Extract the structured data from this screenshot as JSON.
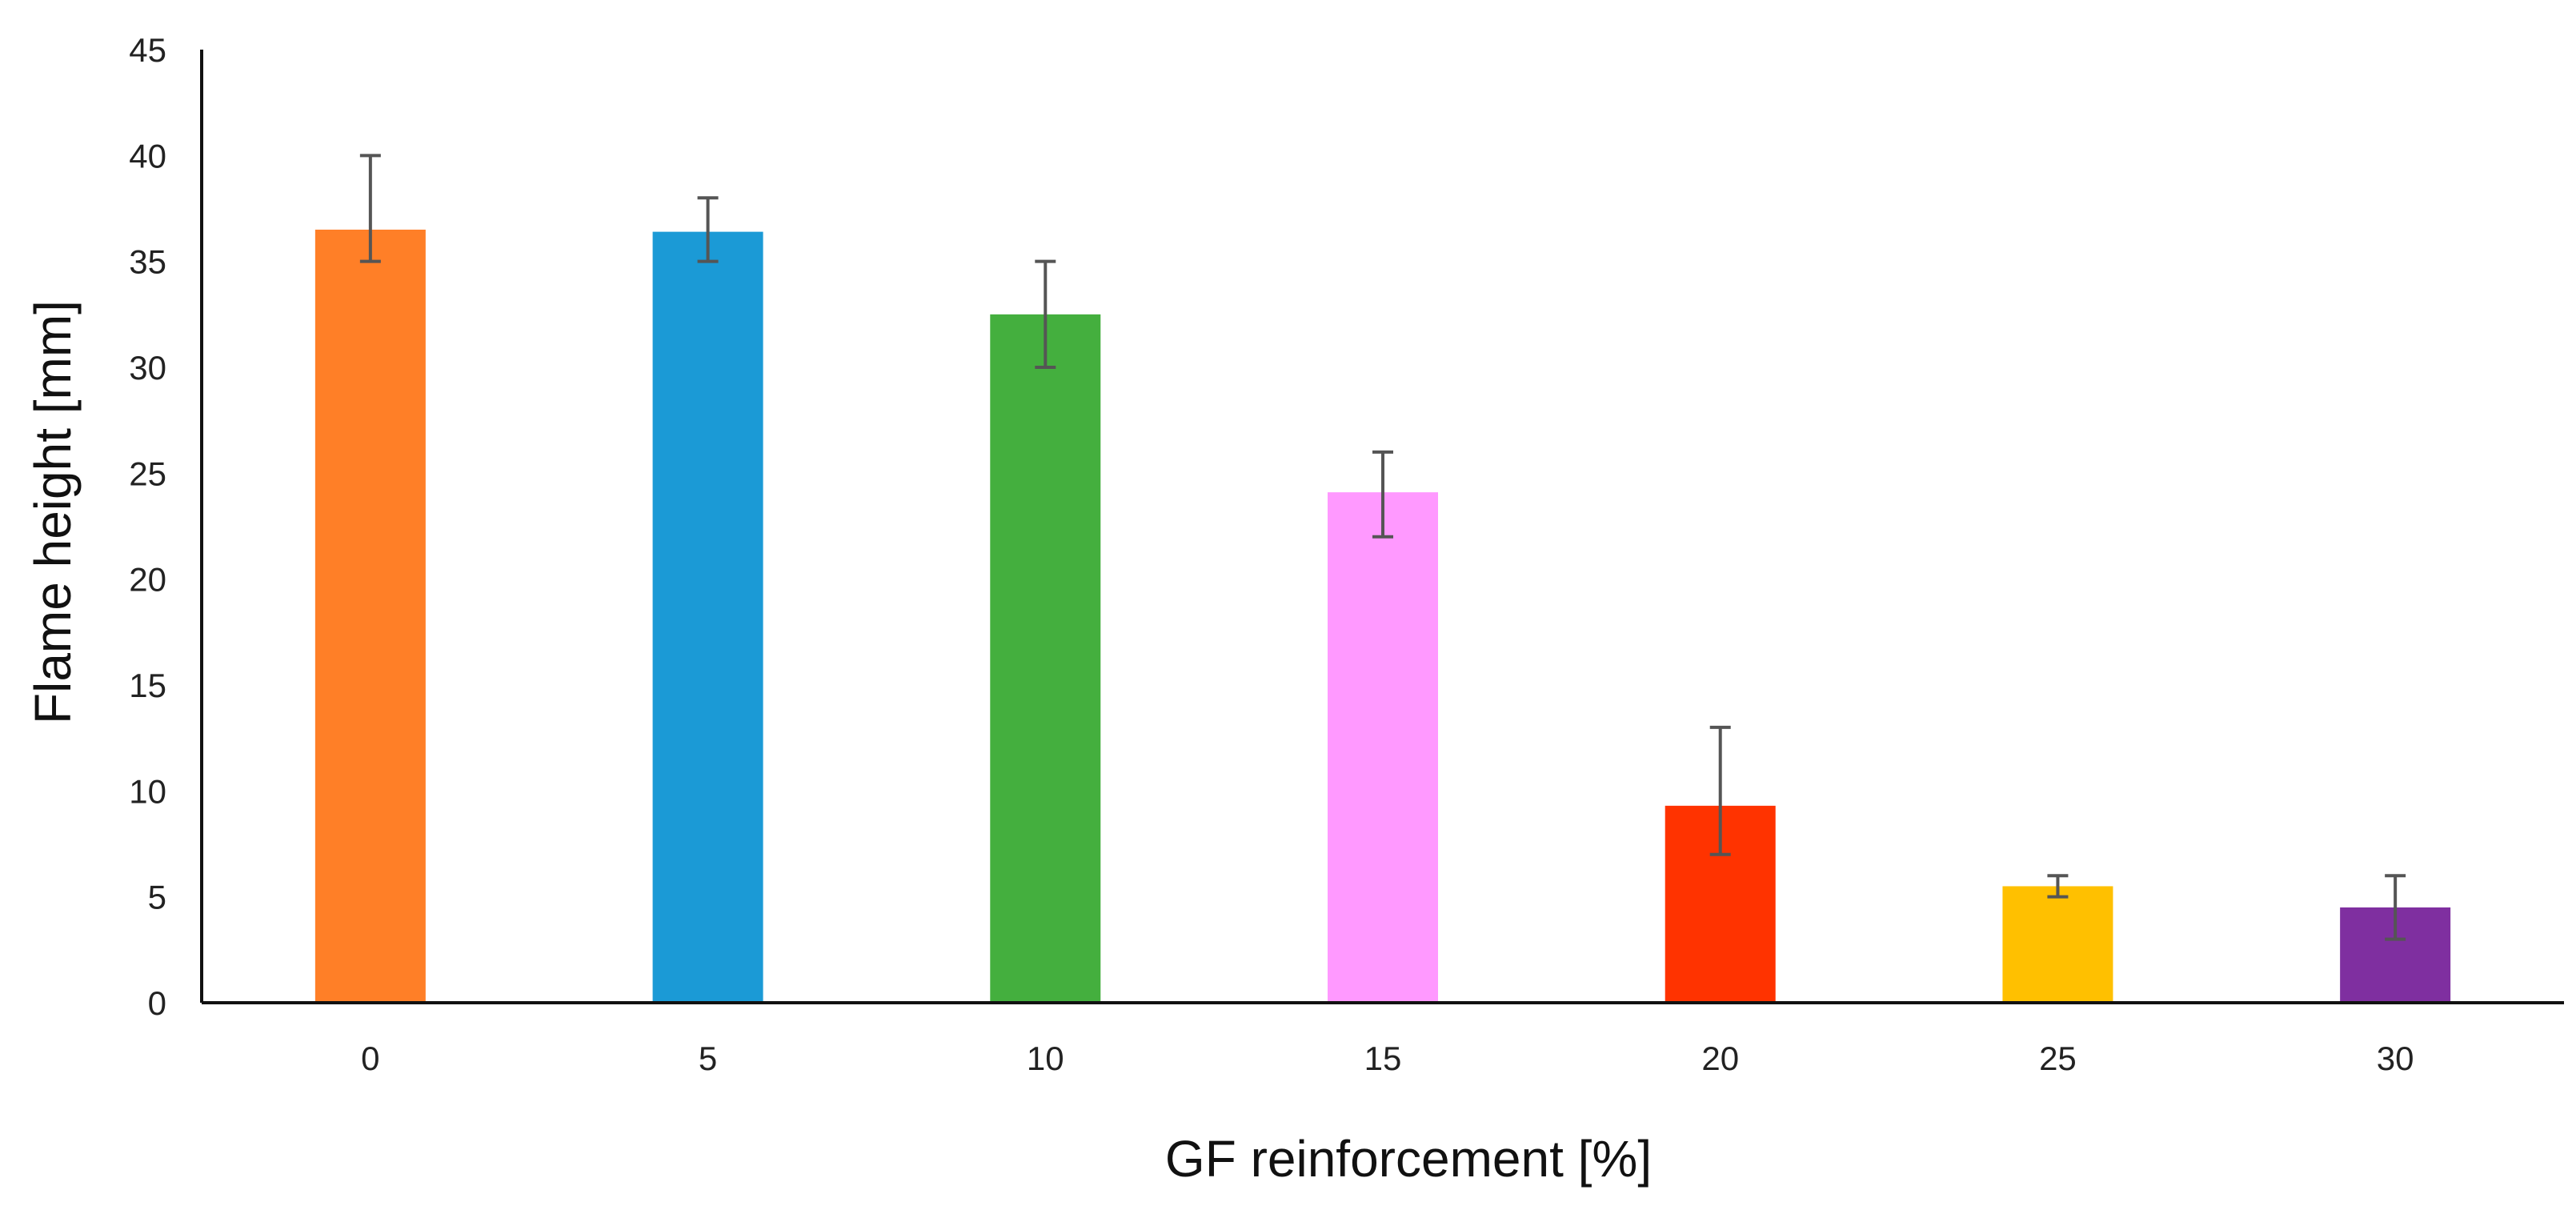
{
  "chart_data": {
    "type": "bar",
    "title": "",
    "xlabel": "GF reinforcement  [%]",
    "ylabel": "Flame height [mm]",
    "categories": [
      "0",
      "5",
      "10",
      "15",
      "20",
      "25",
      "30"
    ],
    "values": [
      36.5,
      36.4,
      32.5,
      24.1,
      9.3,
      5.5,
      4.5
    ],
    "error_low": [
      35,
      35,
      30,
      22,
      7,
      5,
      3
    ],
    "error_high": [
      40,
      38,
      35,
      26,
      13,
      6,
      6
    ],
    "colors": [
      "#FF7F27",
      "#1B9AD6",
      "#44AF3E",
      "#FF99FF",
      "#FF3300",
      "#FFC000",
      "#7F2FA0"
    ],
    "ylim": [
      0,
      45
    ],
    "yticks": [
      "0",
      "5",
      "10",
      "15",
      "20",
      "25",
      "30",
      "35",
      "40",
      "45"
    ],
    "grid": false,
    "legend": "none"
  }
}
